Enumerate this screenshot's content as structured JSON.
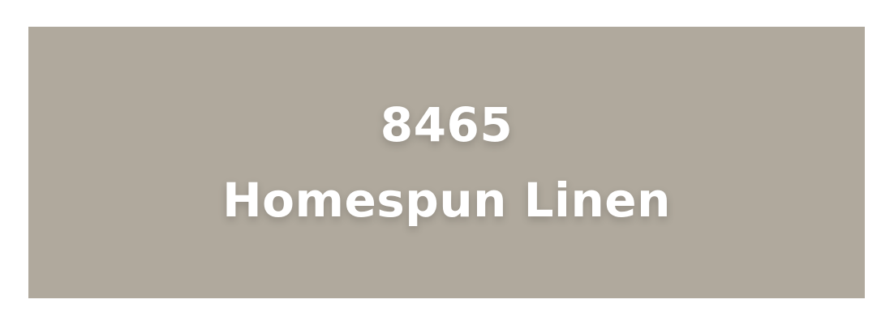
{
  "swatch": {
    "color_hex": "#B0A99D",
    "code": "8465",
    "name": "Homespun Linen",
    "text_color": "#FFFFFF"
  }
}
